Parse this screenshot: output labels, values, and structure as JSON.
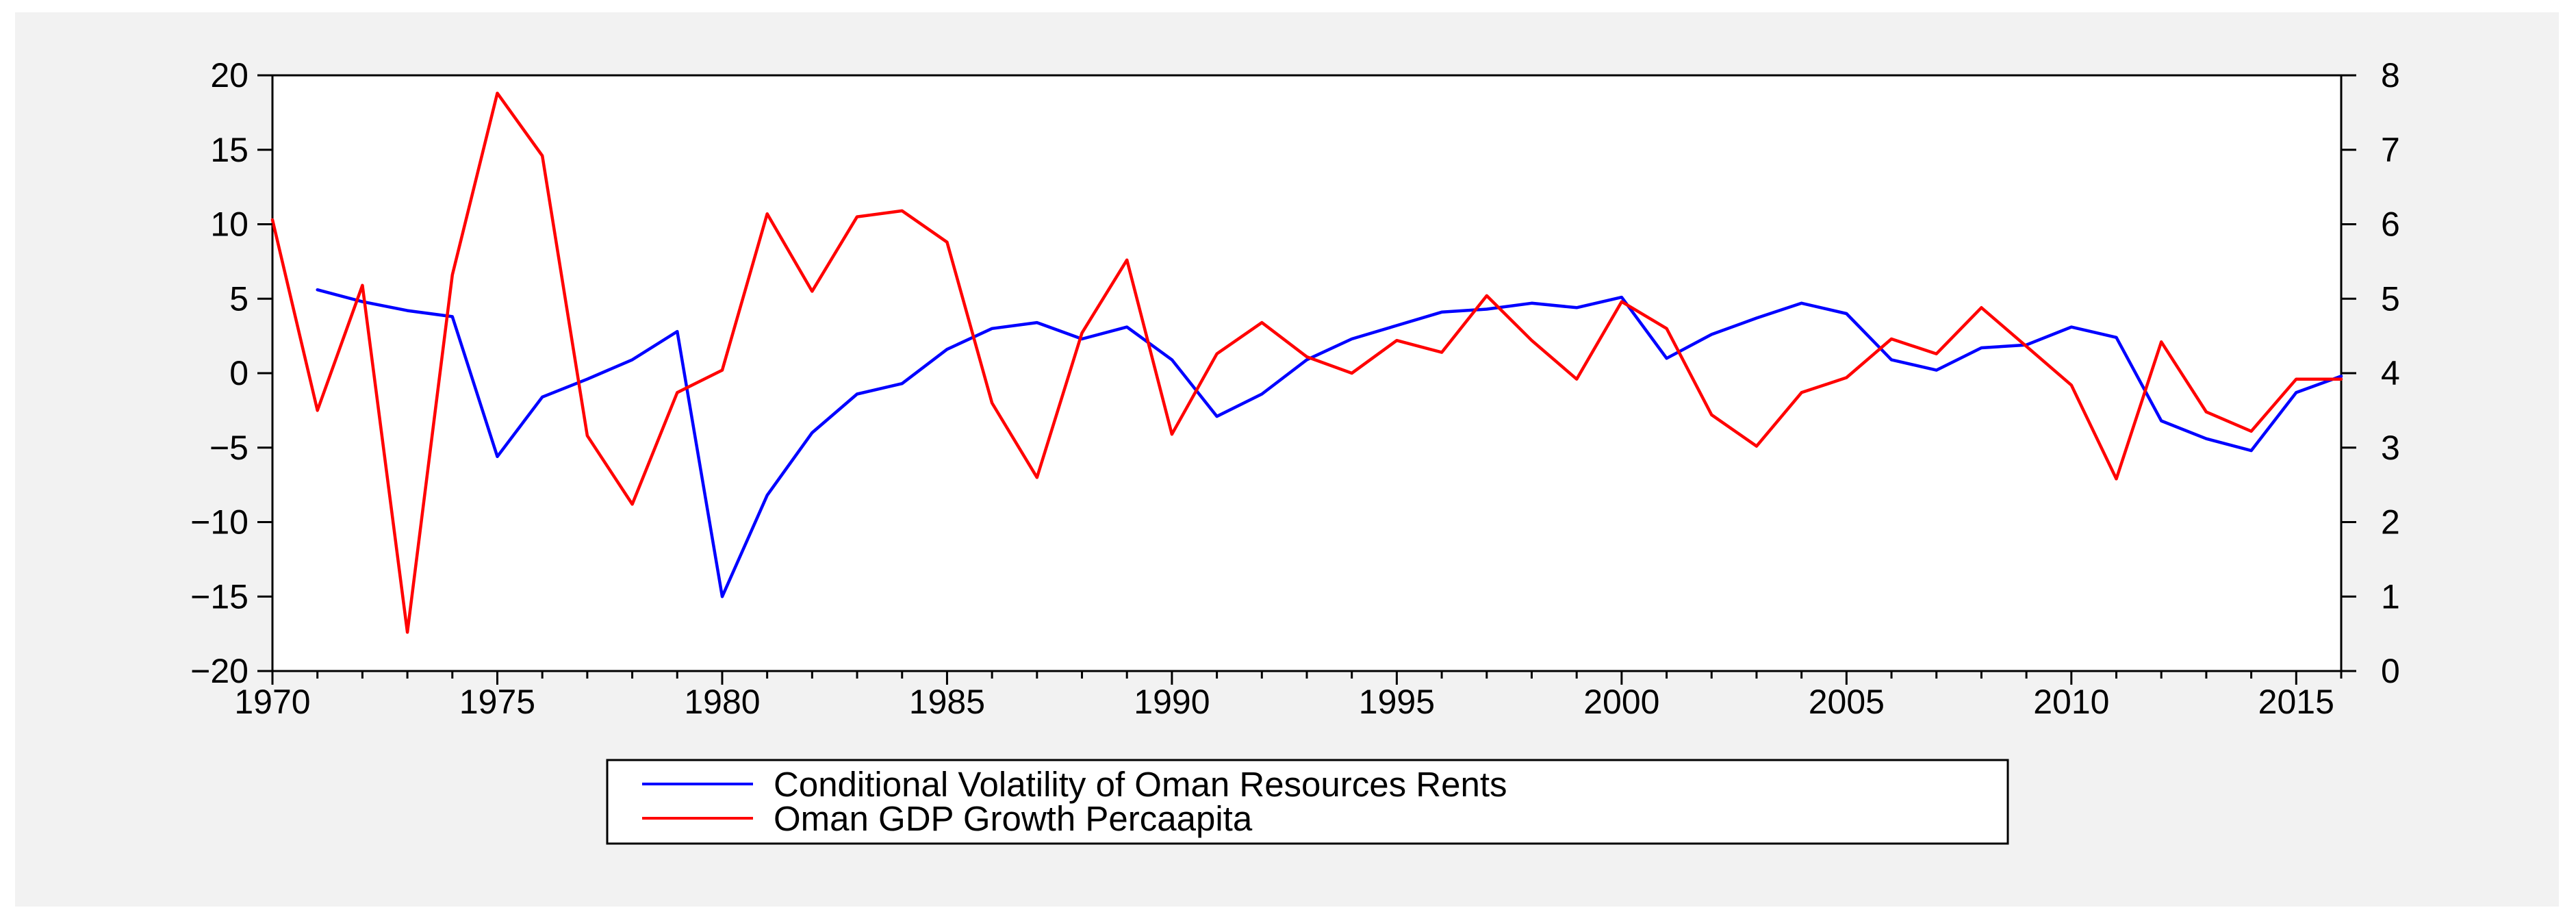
{
  "chart_data": {
    "type": "line",
    "title": "",
    "xlabel": "",
    "ylabel_left": "",
    "ylabel_right": "",
    "x": [
      1970,
      1971,
      1972,
      1973,
      1974,
      1975,
      1976,
      1977,
      1978,
      1979,
      1980,
      1981,
      1982,
      1983,
      1984,
      1985,
      1986,
      1987,
      1988,
      1989,
      1990,
      1991,
      1992,
      1993,
      1994,
      1995,
      1996,
      1997,
      1998,
      1999,
      2000,
      2001,
      2002,
      2003,
      2004,
      2005,
      2006,
      2007,
      2008,
      2009,
      2010,
      2011,
      2012,
      2013,
      2014,
      2015,
      2016
    ],
    "xlim": [
      1970,
      2016
    ],
    "x_ticks": [
      1970,
      1975,
      1980,
      1985,
      1990,
      1995,
      2000,
      2005,
      2010,
      2015
    ],
    "ylim_left": [
      -20,
      20
    ],
    "y_ticks_left": [
      -20,
      -15,
      -10,
      -5,
      0,
      5,
      10,
      15,
      20
    ],
    "ylim_right": [
      0,
      8
    ],
    "y_ticks_right": [
      0,
      1,
      2,
      3,
      4,
      5,
      6,
      7,
      8
    ],
    "grid": false,
    "legend_position": "bottom-center",
    "series": [
      {
        "name": "Conditional Volatility of Oman Resources Rents",
        "axis": "left",
        "color": "#0000ff",
        "values": [
          null,
          5.6,
          4.8,
          4.2,
          3.8,
          -5.6,
          -1.6,
          -0.4,
          0.9,
          2.8,
          -15.0,
          -8.2,
          -4.0,
          -1.4,
          -0.7,
          1.6,
          3.0,
          3.4,
          2.3,
          3.1,
          0.9,
          -2.9,
          -1.4,
          0.9,
          2.3,
          3.2,
          4.1,
          4.3,
          4.7,
          4.4,
          5.1,
          1.0,
          2.6,
          3.7,
          4.7,
          4.0,
          0.9,
          0.2,
          1.7,
          1.9,
          3.1,
          2.4,
          -3.2,
          -4.4,
          -5.2,
          -1.3,
          -0.2
        ]
      },
      {
        "name": "Oman GDP Growth Percaapita",
        "axis": "left",
        "color": "#ff0000",
        "values": [
          10.3,
          -2.5,
          5.9,
          -17.4,
          6.6,
          18.8,
          14.6,
          -4.2,
          -8.8,
          -1.3,
          0.2,
          10.7,
          5.5,
          10.5,
          10.9,
          8.8,
          -2.0,
          -7.0,
          2.7,
          7.6,
          -4.1,
          1.3,
          3.4,
          1.1,
          0.0,
          2.2,
          1.4,
          5.2,
          2.2,
          -0.4,
          4.8,
          3.0,
          -2.8,
          -4.9,
          -1.3,
          -0.3,
          2.3,
          1.3,
          4.4,
          1.8,
          -0.8,
          -7.1,
          2.1,
          -2.6,
          -3.9,
          -0.4,
          -0.4
        ]
      }
    ]
  }
}
